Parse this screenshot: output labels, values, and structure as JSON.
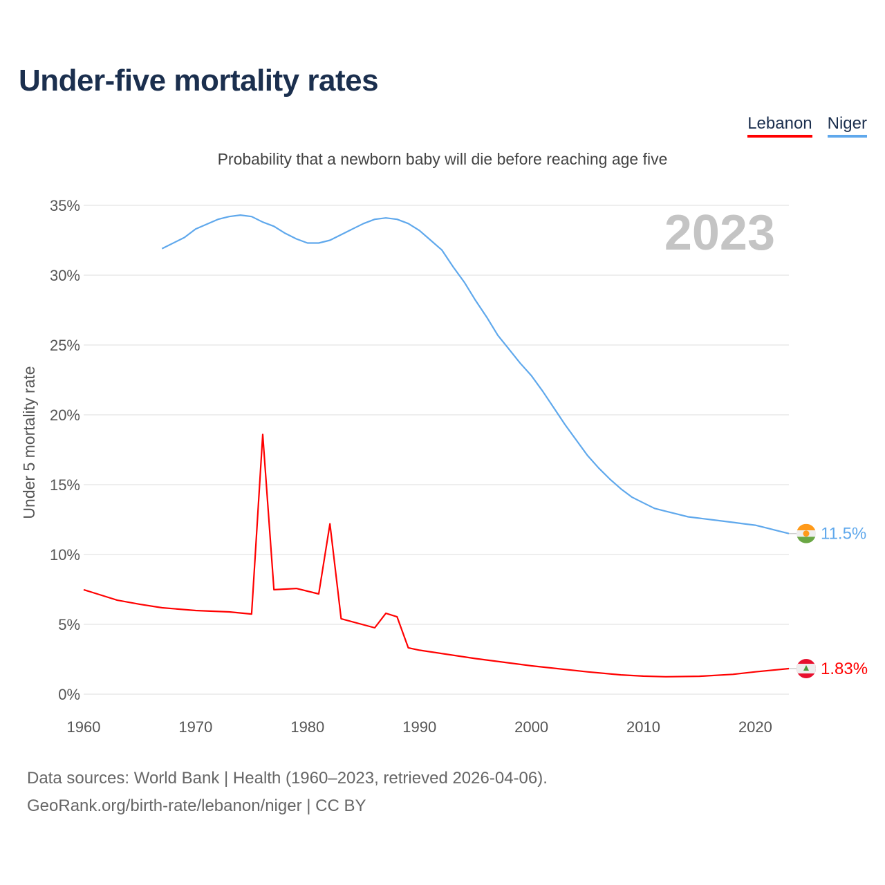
{
  "title": "Under-five mortality rates",
  "subtitle": "Probability that a newborn baby will die before reaching age five",
  "legend": [
    {
      "name": "Lebanon",
      "color": "#ff0000"
    },
    {
      "name": "Niger",
      "color": "#5fa8ec"
    }
  ],
  "year_label": "2023",
  "source_line1": "Data sources: World Bank | Health (1960–2023, retrieved 2026-04-06).",
  "source_line2": "GeoRank.org/birth-rate/lebanon/niger | CC BY",
  "chart_data": {
    "type": "line",
    "title": "Under-five mortality rates",
    "ylabel": "Under 5 mortality rate",
    "xlabel": "",
    "xlim": [
      1960,
      2023
    ],
    "ylim": [
      0,
      35
    ],
    "xticks": [
      1960,
      1970,
      1980,
      1990,
      2000,
      2010,
      2020
    ],
    "yticks": [
      0,
      5,
      10,
      15,
      20,
      25,
      30,
      35
    ],
    "ytick_labels": [
      "0%",
      "5%",
      "10%",
      "15%",
      "20%",
      "25%",
      "30%",
      "35%"
    ],
    "grid": true,
    "legend_position": "top-right",
    "series": [
      {
        "name": "Lebanon",
        "color": "#ff0000",
        "end_label": "1.83%",
        "x": [
          1960,
          1962,
          1963,
          1965,
          1967,
          1970,
          1973,
          1975,
          1976,
          1977,
          1979,
          1981,
          1982,
          1983,
          1986,
          1987,
          1988,
          1989,
          1990,
          1995,
          2000,
          2005,
          2008,
          2010,
          2012,
          2015,
          2018,
          2020,
          2023
        ],
        "y": [
          7.48,
          6.98,
          6.73,
          6.44,
          6.19,
          5.99,
          5.89,
          5.74,
          18.6,
          7.48,
          7.57,
          7.18,
          12.2,
          5.4,
          4.75,
          5.79,
          5.54,
          3.32,
          3.15,
          2.55,
          2.03,
          1.6,
          1.38,
          1.29,
          1.25,
          1.28,
          1.42,
          1.6,
          1.83
        ]
      },
      {
        "name": "Niger",
        "color": "#5fa8ec",
        "end_label": "11.5%",
        "x": [
          1967,
          1969,
          1970,
          1972,
          1973,
          1974,
          1975,
          1976,
          1977,
          1978,
          1979,
          1980,
          1981,
          1982,
          1984,
          1985,
          1986,
          1987,
          1988,
          1989,
          1990,
          1991,
          1992,
          1993,
          1994,
          1995,
          1996,
          1997,
          1998,
          1999,
          2000,
          2001,
          2002,
          2003,
          2004,
          2005,
          2006,
          2007,
          2008,
          2009,
          2010,
          2011,
          2012,
          2013,
          2014,
          2015,
          2016,
          2017,
          2018,
          2019,
          2020,
          2021,
          2022,
          2023
        ],
        "y": [
          31.9,
          32.7,
          33.3,
          34.0,
          34.2,
          34.3,
          34.2,
          33.8,
          33.5,
          33.0,
          32.6,
          32.3,
          32.3,
          32.5,
          33.3,
          33.7,
          34.0,
          34.1,
          34.0,
          33.7,
          33.2,
          32.5,
          31.8,
          30.6,
          29.5,
          28.2,
          27.0,
          25.7,
          24.7,
          23.7,
          22.8,
          21.7,
          20.5,
          19.3,
          18.2,
          17.1,
          16.2,
          15.4,
          14.7,
          14.1,
          13.7,
          13.3,
          13.1,
          12.9,
          12.7,
          12.6,
          12.5,
          12.4,
          12.3,
          12.2,
          12.1,
          11.9,
          11.7,
          11.5
        ]
      }
    ]
  }
}
